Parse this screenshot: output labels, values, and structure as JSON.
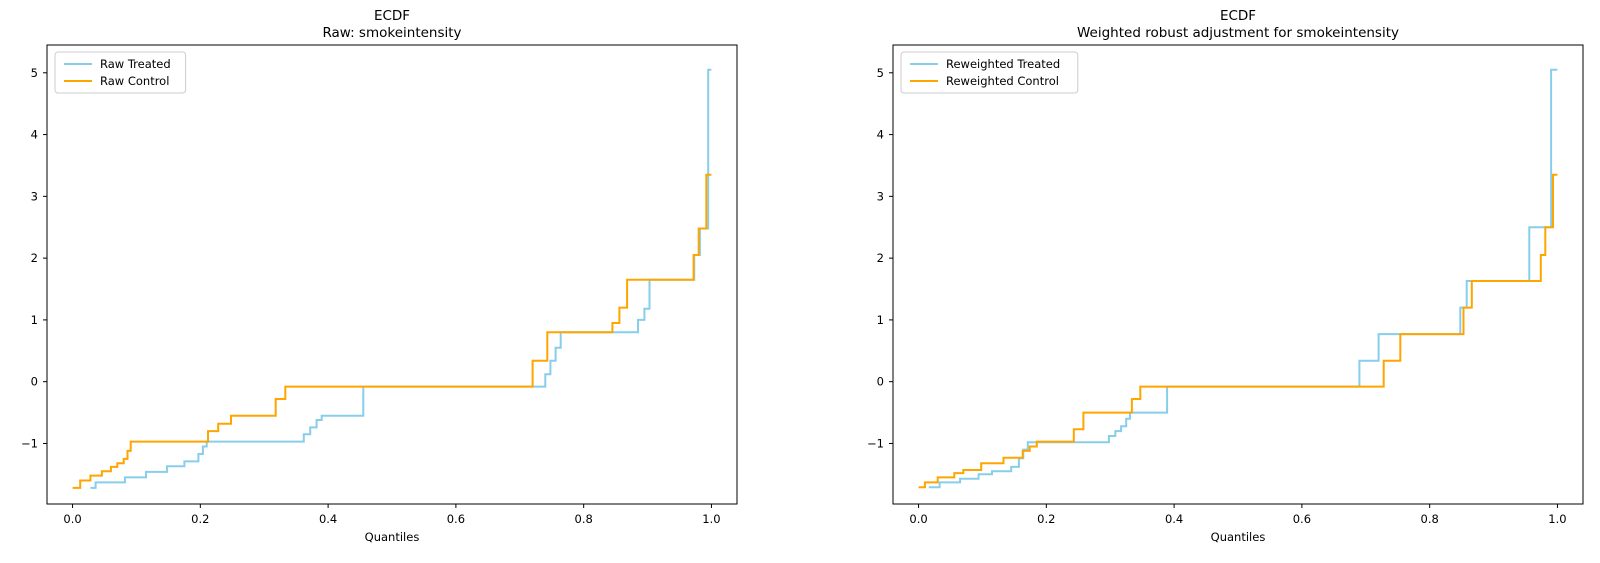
{
  "figure": {
    "background": "#ffffff"
  },
  "chart_data": [
    {
      "type": "line",
      "title": "ECDF",
      "subtitle": "Raw: smokeintensity",
      "xlabel": "Quantiles",
      "ylabel": "",
      "xlim": [
        -0.04,
        1.04
      ],
      "ylim": [
        -1.98,
        5.45
      ],
      "grid": false,
      "x_ticks": {
        "values": [
          0.0,
          0.2,
          0.4,
          0.6,
          0.8,
          1.0
        ],
        "labels": [
          "0.0",
          "0.2",
          "0.4",
          "0.6",
          "0.8",
          "1.0"
        ]
      },
      "y_ticks": {
        "values": [
          5,
          4,
          3,
          2,
          1,
          0,
          -1
        ],
        "labels": [
          "5",
          "4",
          "3",
          "2",
          "1",
          "0",
          "−1"
        ]
      },
      "legend": {
        "position": "upper-left",
        "border_color": "#cccccc",
        "background": "#ffffff"
      },
      "series": [
        {
          "name": "Raw Treated",
          "color": "#87CEEB",
          "step_points": [
            [
              0.028,
              -1.72
            ],
            [
              0.036,
              -1.63
            ],
            [
              0.082,
              -1.55
            ],
            [
              0.115,
              -1.46
            ],
            [
              0.148,
              -1.37
            ],
            [
              0.175,
              -1.29
            ],
            [
              0.197,
              -1.17
            ],
            [
              0.204,
              -1.05
            ],
            [
              0.21,
              -0.97
            ],
            [
              0.362,
              -0.85
            ],
            [
              0.372,
              -0.74
            ],
            [
              0.382,
              -0.62
            ],
            [
              0.39,
              -0.55
            ],
            [
              0.455,
              -0.08
            ],
            [
              0.74,
              0.12
            ],
            [
              0.748,
              0.34
            ],
            [
              0.756,
              0.55
            ],
            [
              0.764,
              0.8
            ],
            [
              0.885,
              1.0
            ],
            [
              0.895,
              1.18
            ],
            [
              0.903,
              1.65
            ],
            [
              0.973,
              2.05
            ],
            [
              0.982,
              2.48
            ],
            [
              0.995,
              5.05
            ],
            [
              1.0,
              5.05
            ]
          ]
        },
        {
          "name": "Raw Control",
          "color": "#FFA500",
          "step_points": [
            [
              0.0,
              -1.72
            ],
            [
              0.012,
              -1.6
            ],
            [
              0.028,
              -1.52
            ],
            [
              0.046,
              -1.45
            ],
            [
              0.06,
              -1.38
            ],
            [
              0.07,
              -1.32
            ],
            [
              0.08,
              -1.25
            ],
            [
              0.086,
              -1.12
            ],
            [
              0.091,
              -0.97
            ],
            [
              0.212,
              -0.8
            ],
            [
              0.228,
              -0.68
            ],
            [
              0.248,
              -0.55
            ],
            [
              0.318,
              -0.28
            ],
            [
              0.333,
              -0.08
            ],
            [
              0.72,
              0.34
            ],
            [
              0.743,
              0.8
            ],
            [
              0.845,
              0.95
            ],
            [
              0.856,
              1.2
            ],
            [
              0.868,
              1.65
            ],
            [
              0.972,
              2.05
            ],
            [
              0.98,
              2.48
            ],
            [
              0.992,
              3.35
            ],
            [
              1.0,
              3.35
            ]
          ]
        }
      ]
    },
    {
      "type": "line",
      "title": "ECDF",
      "subtitle": "Weighted robust adjustment for smokeintensity",
      "xlabel": "Quantiles",
      "ylabel": "",
      "xlim": [
        -0.04,
        1.04
      ],
      "ylim": [
        -1.98,
        5.45
      ],
      "grid": false,
      "x_ticks": {
        "values": [
          0.0,
          0.2,
          0.4,
          0.6,
          0.8,
          1.0
        ],
        "labels": [
          "0.0",
          "0.2",
          "0.4",
          "0.6",
          "0.8",
          "1.0"
        ]
      },
      "y_ticks": {
        "values": [
          5,
          4,
          3,
          2,
          1,
          0,
          -1
        ],
        "labels": [
          "5",
          "4",
          "3",
          "2",
          "1",
          "0",
          "−1"
        ]
      },
      "legend": {
        "position": "upper-left",
        "border_color": "#cccccc",
        "background": "#ffffff"
      },
      "series": [
        {
          "name": "Reweighted Treated",
          "color": "#87CEEB",
          "step_points": [
            [
              0.016,
              -1.71
            ],
            [
              0.033,
              -1.63
            ],
            [
              0.065,
              -1.57
            ],
            [
              0.094,
              -1.5
            ],
            [
              0.115,
              -1.45
            ],
            [
              0.145,
              -1.38
            ],
            [
              0.157,
              -1.24
            ],
            [
              0.164,
              -1.1
            ],
            [
              0.171,
              -0.98
            ],
            [
              0.298,
              -0.88
            ],
            [
              0.308,
              -0.8
            ],
            [
              0.317,
              -0.72
            ],
            [
              0.325,
              -0.6
            ],
            [
              0.331,
              -0.5
            ],
            [
              0.389,
              -0.08
            ],
            [
              0.69,
              0.34
            ],
            [
              0.72,
              0.77
            ],
            [
              0.848,
              1.2
            ],
            [
              0.858,
              1.63
            ],
            [
              0.956,
              2.5
            ],
            [
              0.99,
              5.05
            ],
            [
              1.0,
              5.05
            ]
          ]
        },
        {
          "name": "Reweighted Control",
          "color": "#FFA500",
          "step_points": [
            [
              0.0,
              -1.71
            ],
            [
              0.01,
              -1.63
            ],
            [
              0.03,
              -1.55
            ],
            [
              0.056,
              -1.48
            ],
            [
              0.07,
              -1.43
            ],
            [
              0.098,
              -1.32
            ],
            [
              0.133,
              -1.23
            ],
            [
              0.163,
              -1.12
            ],
            [
              0.174,
              -1.05
            ],
            [
              0.185,
              -0.97
            ],
            [
              0.243,
              -0.77
            ],
            [
              0.258,
              -0.5
            ],
            [
              0.334,
              -0.28
            ],
            [
              0.347,
              -0.08
            ],
            [
              0.728,
              0.34
            ],
            [
              0.754,
              0.77
            ],
            [
              0.853,
              1.2
            ],
            [
              0.866,
              1.63
            ],
            [
              0.974,
              2.05
            ],
            [
              0.981,
              2.5
            ],
            [
              0.993,
              3.35
            ],
            [
              1.0,
              3.35
            ]
          ]
        }
      ]
    }
  ]
}
